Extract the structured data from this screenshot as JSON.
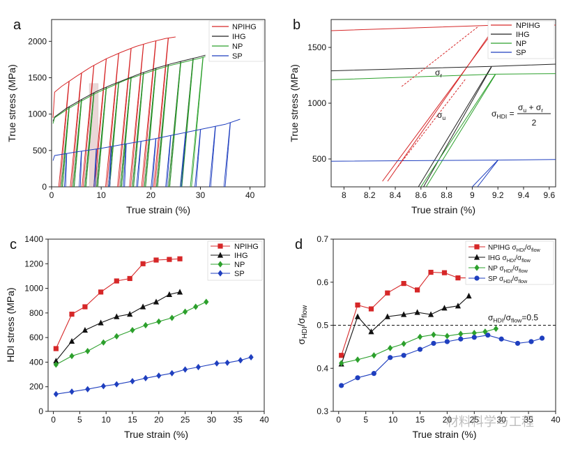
{
  "panels": {
    "a": "a",
    "b": "b",
    "c": "c",
    "d": "d"
  },
  "watermark": "材料科学与工程",
  "chart_data": [
    {
      "id": "a",
      "type": "line",
      "xlabel": "True strain (%)",
      "ylabel": "True stress (MPa)",
      "xlim": [
        0,
        43
      ],
      "ylim": [
        0,
        2300
      ],
      "xticks": [
        0,
        10,
        20,
        30,
        40
      ],
      "yticks": [
        0,
        500,
        1000,
        1500,
        2000
      ],
      "legend_position": "top-right",
      "grid": false,
      "series": [
        {
          "name": "NPIHG",
          "color": "#d62728",
          "envelope": [
            [
              0.3,
              950
            ],
            [
              0.6,
              1300
            ],
            [
              2,
              1380
            ],
            [
              5,
              1520
            ],
            [
              8,
              1650
            ],
            [
              11,
              1760
            ],
            [
              14,
              1850
            ],
            [
              17,
              1930
            ],
            [
              20,
              1990
            ],
            [
              23,
              2040
            ],
            [
              25,
              2060
            ]
          ],
          "unloads": [
            3.5,
            6,
            8.5,
            11,
            13.5,
            16,
            18.5,
            21,
            23.5
          ]
        },
        {
          "name": "IHG",
          "color": "#222222",
          "envelope": [
            [
              0.3,
              900
            ],
            [
              0.6,
              960
            ],
            [
              3,
              1080
            ],
            [
              6,
              1200
            ],
            [
              9,
              1310
            ],
            [
              12,
              1400
            ],
            [
              15,
              1480
            ],
            [
              18,
              1560
            ],
            [
              21,
              1630
            ],
            [
              24,
              1690
            ],
            [
              27,
              1740
            ],
            [
              30,
              1790
            ],
            [
              31,
              1810
            ]
          ],
          "unloads": [
            3.5,
            6,
            8.5,
            11,
            13.5,
            16,
            18.5,
            21,
            23.5,
            26,
            28.5
          ]
        },
        {
          "name": "NP",
          "color": "#2ca02c",
          "envelope": [
            [
              0.3,
              870
            ],
            [
              0.6,
              950
            ],
            [
              3,
              1060
            ],
            [
              6,
              1180
            ],
            [
              9,
              1290
            ],
            [
              12,
              1380
            ],
            [
              15,
              1470
            ],
            [
              18,
              1540
            ],
            [
              21,
              1610
            ],
            [
              24,
              1670
            ],
            [
              27,
              1720
            ],
            [
              30,
              1770
            ],
            [
              31,
              1790
            ]
          ],
          "unloads": [
            3.5,
            6,
            8.5,
            11,
            13.5,
            16,
            18.5,
            21,
            23.5,
            26,
            28.5,
            30.5
          ]
        },
        {
          "name": "SP",
          "color": "#1f3fbf",
          "envelope": [
            [
              0.3,
              360
            ],
            [
              0.6,
              430
            ],
            [
              5,
              480
            ],
            [
              10,
              530
            ],
            [
              15,
              590
            ],
            [
              20,
              650
            ],
            [
              25,
              720
            ],
            [
              30,
              790
            ],
            [
              35,
              860
            ],
            [
              38,
              930
            ]
          ],
          "unloads": [
            3,
            6,
            9,
            12,
            15,
            18,
            21,
            24,
            27,
            30,
            33,
            36
          ]
        }
      ]
    },
    {
      "id": "b",
      "type": "line",
      "xlabel": "True strain (%)",
      "ylabel": "True stress (MPa)",
      "xlim": [
        7.9,
        9.65
      ],
      "ylim": [
        250,
        1750
      ],
      "xticks": [
        8,
        8.2,
        8.4,
        8.6,
        8.8,
        9,
        9.2,
        9.4,
        9.6
      ],
      "yticks": [
        500,
        1000,
        1500
      ],
      "legend_position": "top-right",
      "annotations": {
        "sigma_r": "σr",
        "sigma_u": "σu",
        "formula_lhs": "σHDI =",
        "formula_num": "σu + σr",
        "formula_den": "2"
      },
      "series": [
        {
          "name": "NPIHG",
          "color": "#d62728",
          "points": [
            [
              7.9,
              1650
            ],
            [
              9.2,
              1700
            ],
            [
              9.65,
              1700
            ]
          ],
          "hysteresis": {
            "unload": [
              [
                9.2,
                1700
              ],
              [
                8.3,
                300
              ]
            ],
            "reload": [
              [
                8.3,
                300
              ],
              [
                9.18,
                1690
              ]
            ]
          }
        },
        {
          "name": "IHG",
          "color": "#222222",
          "points": [
            [
              7.9,
              1290
            ],
            [
              9.15,
              1330
            ],
            [
              9.65,
              1350
            ]
          ],
          "hysteresis": {
            "unload": [
              [
                9.15,
                1330
              ],
              [
                8.58,
                250
              ]
            ],
            "reload": [
              [
                8.58,
                250
              ],
              [
                9.15,
                1325
              ]
            ]
          }
        },
        {
          "name": "NP",
          "color": "#2ca02c",
          "points": [
            [
              7.9,
              1210
            ],
            [
              9.18,
              1260
            ],
            [
              9.65,
              1265
            ]
          ],
          "hysteresis": {
            "unload": [
              [
                9.18,
                1260
              ],
              [
                8.6,
                250
              ]
            ],
            "reload": [
              [
                8.6,
                250
              ],
              [
                9.18,
                1255
              ]
            ]
          }
        },
        {
          "name": "SP",
          "color": "#1f3fbf",
          "points": [
            [
              7.9,
              480
            ],
            [
              9.2,
              490
            ],
            [
              9.65,
              495
            ]
          ],
          "hysteresis": {
            "unload": [
              [
                9.2,
                490
              ],
              [
                9.0,
                250
              ]
            ],
            "reload": [
              [
                9.0,
                250
              ],
              [
                9.2,
                488
              ]
            ]
          }
        }
      ]
    },
    {
      "id": "c",
      "type": "line",
      "xlabel": "True strain (%)",
      "ylabel": "HDI stress (MPa)",
      "xlim": [
        -1,
        40
      ],
      "ylim": [
        0,
        1400
      ],
      "xticks": [
        0,
        5,
        10,
        15,
        20,
        25,
        30,
        35,
        40
      ],
      "yticks": [
        0,
        200,
        400,
        600,
        800,
        1000,
        1200,
        1400
      ],
      "legend_position": "top-right",
      "series": [
        {
          "name": "NPIHG",
          "color": "#d62728",
          "marker": "square",
          "x": [
            0.5,
            3.5,
            6,
            9,
            12,
            14.5,
            17,
            19.5,
            22,
            24
          ],
          "y": [
            510,
            790,
            850,
            970,
            1060,
            1080,
            1200,
            1230,
            1235,
            1240
          ]
        },
        {
          "name": "IHG",
          "color": "#111111",
          "marker": "triangle",
          "x": [
            0.5,
            3.5,
            6,
            9,
            12,
            14.5,
            17,
            19.5,
            22,
            24
          ],
          "y": [
            410,
            570,
            660,
            720,
            770,
            790,
            850,
            890,
            950,
            970
          ]
        },
        {
          "name": "NP",
          "color": "#2ca02c",
          "marker": "diamond",
          "x": [
            0.5,
            3.5,
            6.5,
            9.5,
            12,
            15,
            17.5,
            20,
            22.5,
            25,
            27,
            29
          ],
          "y": [
            380,
            450,
            490,
            560,
            610,
            660,
            700,
            730,
            760,
            810,
            850,
            890
          ]
        },
        {
          "name": "SP",
          "color": "#1f3fbf",
          "marker": "diamond",
          "x": [
            0.5,
            3.5,
            6.5,
            9.5,
            12,
            15,
            17.5,
            20,
            22.5,
            25,
            27.5,
            31,
            33,
            35.5,
            37.5
          ],
          "y": [
            140,
            160,
            180,
            205,
            220,
            245,
            270,
            290,
            310,
            340,
            360,
            390,
            395,
            415,
            440
          ]
        }
      ]
    },
    {
      "id": "d",
      "type": "line",
      "xlabel": "True strain (%)",
      "ylabel": "σHDI/σflow",
      "xlim": [
        -1,
        40
      ],
      "ylim": [
        0.3,
        0.7
      ],
      "xticks": [
        0,
        5,
        10,
        15,
        20,
        25,
        30,
        35,
        40
      ],
      "yticks": [
        0.3,
        0.4,
        0.5,
        0.6,
        0.7
      ],
      "legend_position": "top-right",
      "reference_line": {
        "y": 0.5,
        "label": "σHDI/σflow=0.5"
      },
      "series": [
        {
          "name": "NPIHG σHDI/σflow",
          "color": "#d62728",
          "marker": "square",
          "x": [
            0.5,
            3.5,
            6,
            9,
            12,
            14.5,
            17,
            19.5,
            22,
            24
          ],
          "y": [
            0.43,
            0.547,
            0.538,
            0.575,
            0.597,
            0.582,
            0.623,
            0.622,
            0.61,
            0.61
          ]
        },
        {
          "name": "IHG σHDI/σflow",
          "color": "#111111",
          "marker": "triangle",
          "x": [
            0.5,
            3.5,
            6,
            9,
            12,
            14.5,
            17,
            19.5,
            22,
            24
          ],
          "y": [
            0.41,
            0.52,
            0.485,
            0.52,
            0.525,
            0.53,
            0.525,
            0.54,
            0.545,
            0.568
          ]
        },
        {
          "name": "NP σHDI/σflow",
          "color": "#2ca02c",
          "marker": "diamond",
          "x": [
            0.5,
            3.5,
            6.5,
            9.5,
            12,
            15,
            17.5,
            20,
            22.5,
            25,
            27,
            29
          ],
          "y": [
            0.412,
            0.42,
            0.43,
            0.447,
            0.457,
            0.473,
            0.478,
            0.475,
            0.48,
            0.482,
            0.485,
            0.492
          ]
        },
        {
          "name": "SP σHDI/σflow",
          "color": "#1f3fbf",
          "marker": "circle",
          "x": [
            0.5,
            3.5,
            6.5,
            9.5,
            12,
            15,
            17.5,
            20,
            22.5,
            25,
            27.5,
            30,
            33,
            35.5,
            37.5
          ],
          "y": [
            0.36,
            0.378,
            0.388,
            0.425,
            0.43,
            0.444,
            0.458,
            0.462,
            0.468,
            0.472,
            0.477,
            0.468,
            0.458,
            0.462,
            0.47
          ]
        }
      ]
    }
  ]
}
